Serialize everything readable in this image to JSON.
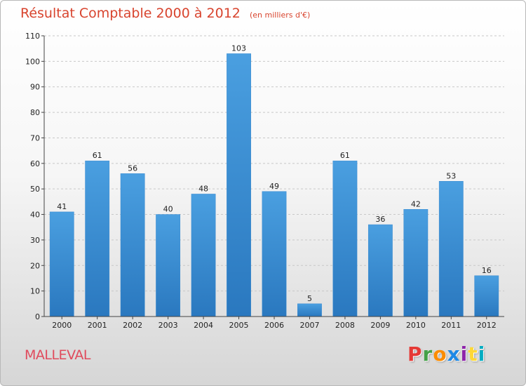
{
  "page": {
    "title": "Résultat Comptable 2000 à 2012",
    "subtitle": "(en milliers d'€)",
    "commune": "MALLEVAL",
    "brand": "Proxiti",
    "brand_colors": [
      "#e53935",
      "#43a047",
      "#fb8c00",
      "#1e88e5",
      "#8e24aa",
      "#fdd835",
      "#00acc1"
    ]
  },
  "chart_data": {
    "type": "bar",
    "title": "Résultat Comptable 2000 à 2012",
    "subtitle": "(en milliers d'€)",
    "categories": [
      "2000",
      "2001",
      "2002",
      "2003",
      "2004",
      "2005",
      "2006",
      "2007",
      "2008",
      "2009",
      "2010",
      "2011",
      "2012"
    ],
    "values": [
      41,
      61,
      56,
      40,
      48,
      103,
      49,
      5,
      61,
      36,
      42,
      53,
      16
    ],
    "ylim": [
      0,
      110
    ],
    "yticks": [
      0,
      10,
      20,
      30,
      40,
      50,
      60,
      70,
      80,
      90,
      100,
      110
    ],
    "grid": true,
    "bar_color": "#4a9fe0",
    "bar_color_dark": "#2a78bf"
  }
}
